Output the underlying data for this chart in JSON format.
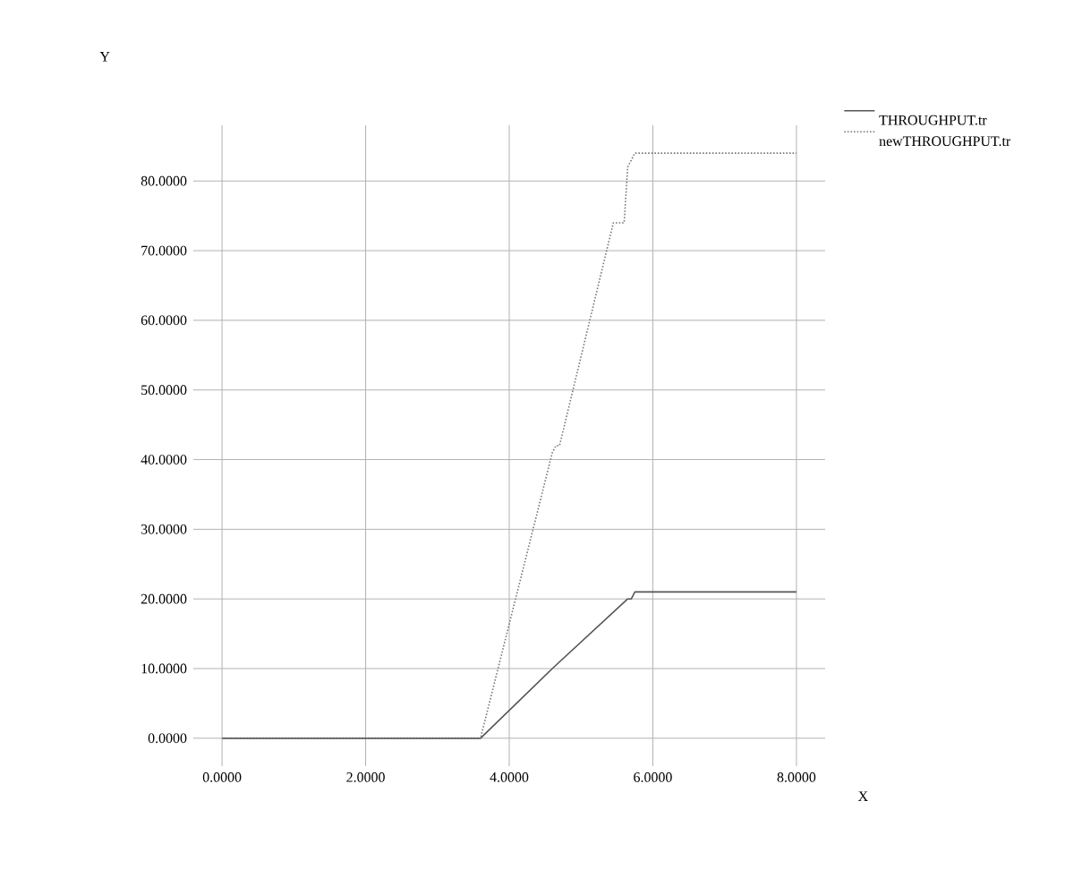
{
  "chart_data": {
    "type": "line",
    "xlabel": "X",
    "ylabel": "Y",
    "xlim": [
      -0.4,
      8.4
    ],
    "ylim": [
      -4,
      88
    ],
    "xticks": [
      {
        "value": 0,
        "label": "0.0000"
      },
      {
        "value": 2,
        "label": "2.0000"
      },
      {
        "value": 4,
        "label": "4.0000"
      },
      {
        "value": 6,
        "label": "6.0000"
      },
      {
        "value": 8,
        "label": "8.0000"
      }
    ],
    "yticks": [
      {
        "value": 0,
        "label": "0.0000"
      },
      {
        "value": 10,
        "label": "10.0000"
      },
      {
        "value": 20,
        "label": "20.0000"
      },
      {
        "value": 30,
        "label": "30.0000"
      },
      {
        "value": 40,
        "label": "40.0000"
      },
      {
        "value": 50,
        "label": "50.0000"
      },
      {
        "value": 60,
        "label": "60.0000"
      },
      {
        "value": 70,
        "label": "70.0000"
      },
      {
        "value": 80,
        "label": "80.0000"
      }
    ],
    "grid": true,
    "legend": "top right",
    "series": [
      {
        "name": "THROUGHPUT.tr",
        "color": "#555555",
        "line_style": "solid",
        "x": [
          0,
          3.6,
          4.6,
          5.65,
          5.7,
          5.75,
          8
        ],
        "values": [
          0,
          0,
          10,
          20,
          20,
          21,
          21
        ]
      },
      {
        "name": "newTHROUGHPUT.tr",
        "color": "#777777",
        "line_style": "dotted",
        "x": [
          0,
          3.6,
          4.6,
          4.65,
          4.7,
          5.45,
          5.6,
          5.65,
          5.7,
          5.75,
          8
        ],
        "values": [
          0,
          0,
          41,
          42,
          42,
          74,
          74,
          82,
          83,
          84,
          84
        ]
      }
    ]
  }
}
